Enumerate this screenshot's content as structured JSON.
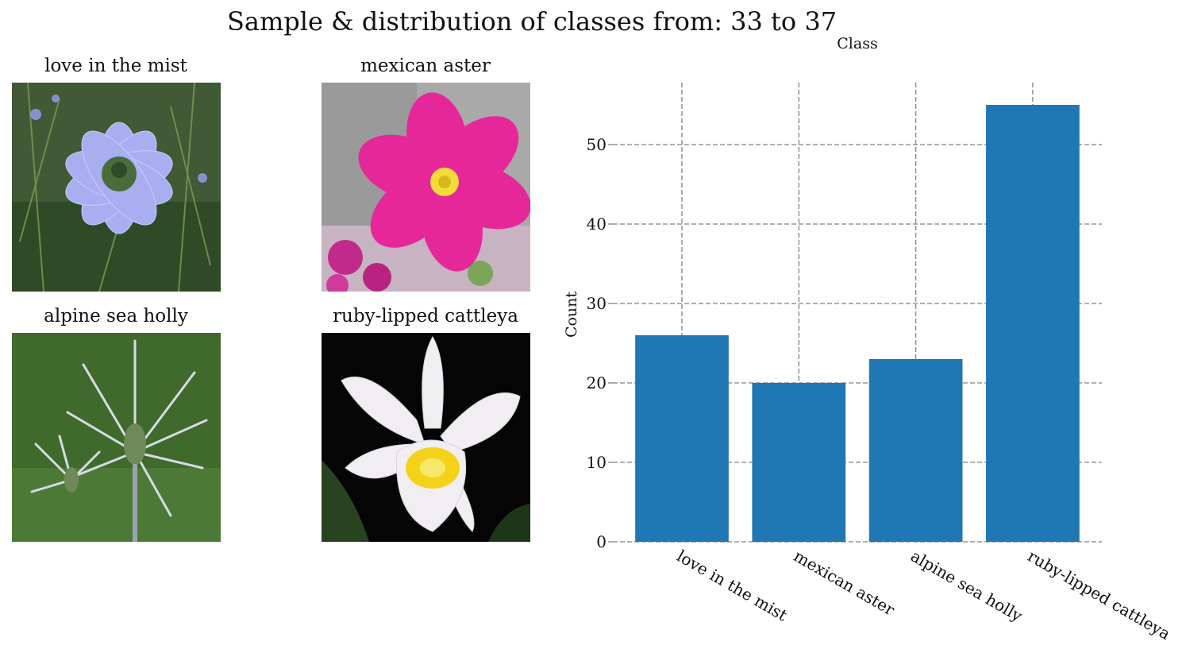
{
  "figure": {
    "title": "Sample & distribution of classes from: 33 to 37"
  },
  "samples": [
    {
      "label": "love in the mist",
      "icon": "nigella-flower-photo",
      "colors": {
        "background": "#3f5a34",
        "petal": "#a9aef0",
        "center": "#4a6b3a"
      }
    },
    {
      "label": "mexican aster",
      "icon": "cosmos-flower-photo",
      "colors": {
        "background": "#a9a9a9",
        "petal": "#e5279a",
        "center": "#f2dc3a"
      }
    },
    {
      "label": "alpine sea holly",
      "icon": "eryngium-flower-photo",
      "colors": {
        "background": "#3f6a2c",
        "petal": "#d6dae6",
        "center": "#6f8a5a"
      }
    },
    {
      "label": "ruby-lipped cattleya",
      "icon": "orchid-flower-photo",
      "colors": {
        "background": "#050505",
        "petal": "#f1eef2",
        "center": "#f5d21a"
      }
    }
  ],
  "chart_data": {
    "type": "bar",
    "title": "Class",
    "xlabel": "",
    "ylabel": "Count",
    "categories": [
      "love in the mist",
      "mexican aster",
      "alpine sea holly",
      "ruby-lipped cattleya"
    ],
    "values": [
      26,
      20,
      23,
      55
    ],
    "ylim": [
      0,
      57.8
    ],
    "yticks": [
      "0",
      "10",
      "20",
      "30",
      "40",
      "50"
    ],
    "grid": true,
    "bar_color": "#1f77b4",
    "grid_color": "#808080"
  }
}
